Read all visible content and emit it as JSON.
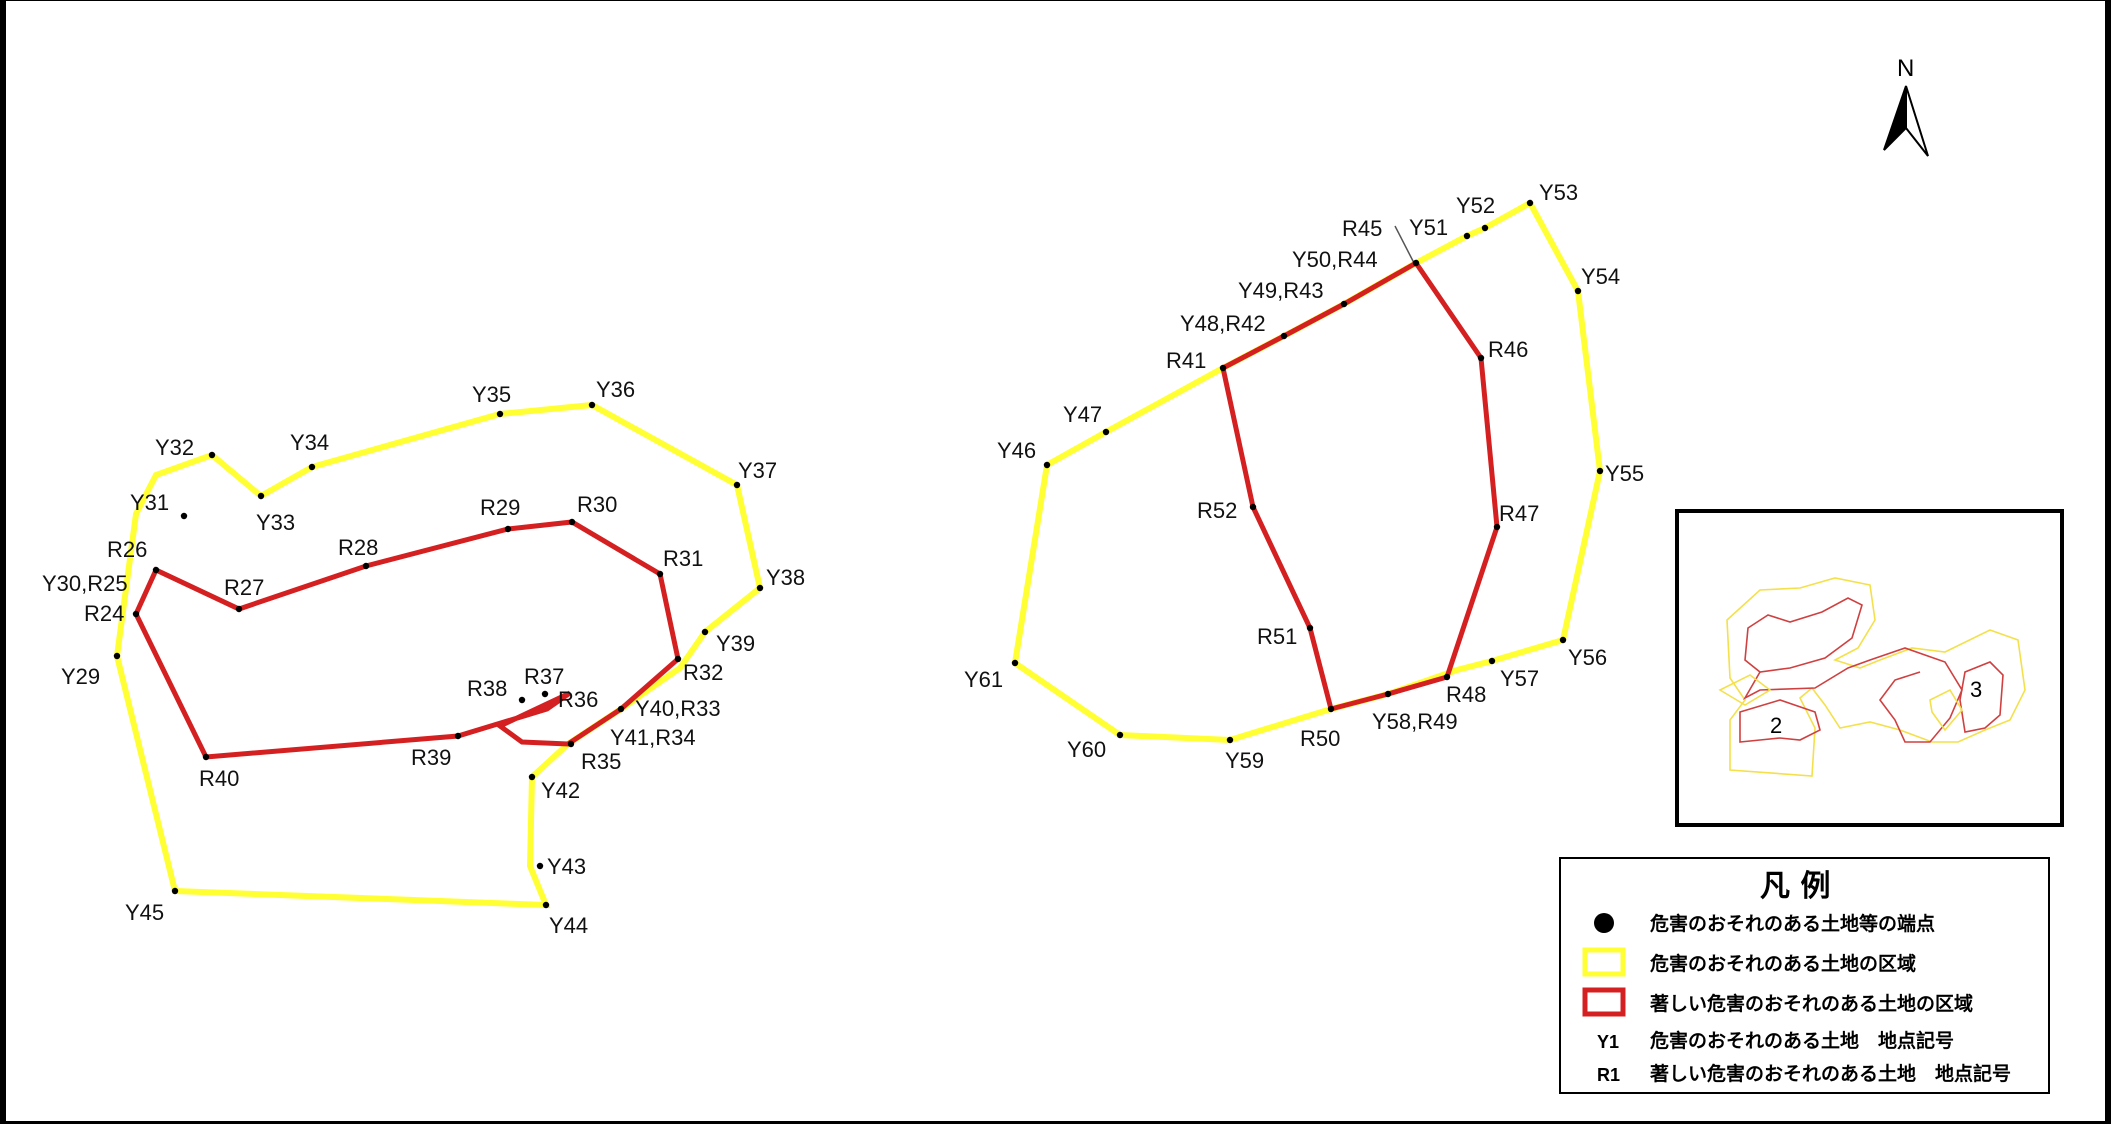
{
  "colors": {
    "yellow": "#ffff33",
    "red": "#d42020",
    "frame": "#000000",
    "inset_yellow": "#f4e04a",
    "inset_red": "#d04040"
  },
  "north": {
    "label": "N"
  },
  "zones": {
    "left": {
      "yellow_boundary": [
        "Y29",
        "Y31",
        "Y32",
        "Y33",
        "Y34",
        "Y35",
        "Y36",
        "Y37",
        "Y38",
        "Y39",
        "Y40,R33",
        "Y41,R34",
        "Y42",
        "Y43",
        "Y44",
        "Y45"
      ],
      "red_boundary": [
        "R24",
        "R26",
        "R27",
        "R28",
        "R29",
        "R30",
        "R31",
        "R32",
        "R33",
        "R34",
        "R35",
        "R36",
        "R37",
        "R38",
        "R39",
        "R40"
      ]
    },
    "right": {
      "yellow_boundary": [
        "Y46",
        "Y47",
        "Y48,R42",
        "Y49,R43",
        "Y50,R44",
        "Y51",
        "Y52",
        "Y53",
        "Y54",
        "Y55",
        "Y56",
        "Y57",
        "Y58,R49",
        "Y59",
        "Y60",
        "Y61"
      ],
      "red_boundary": [
        "R41",
        "R42",
        "R43",
        "R44",
        "R46",
        "R47",
        "R48",
        "R49",
        "R50",
        "R51",
        "R52"
      ]
    }
  },
  "point_labels": {
    "Y30R25": "Y30,R25",
    "R24": "R24",
    "R26": "R26",
    "Y29": "Y29",
    "Y31": "Y31",
    "Y32": "Y32",
    "Y33": "Y33",
    "Y34": "Y34",
    "Y35": "Y35",
    "Y36": "Y36",
    "Y37": "Y37",
    "Y38": "Y38",
    "Y39": "Y39",
    "R27": "R27",
    "R28": "R28",
    "R29": "R29",
    "R30": "R30",
    "R31": "R31",
    "R32": "R32",
    "Y40R33": "Y40,R33",
    "Y41R34": "Y41,R34",
    "R35": "R35",
    "R36": "R36",
    "R37": "R37",
    "R38": "R38",
    "R39": "R39",
    "R40": "R40",
    "Y42": "Y42",
    "Y43": "Y43",
    "Y44": "Y44",
    "Y45": "Y45",
    "Y46": "Y46",
    "Y47": "Y47",
    "R41": "R41",
    "Y48R42": "Y48,R42",
    "Y49R43": "Y49,R43",
    "Y50R44": "Y50,R44",
    "R45": "R45",
    "Y51": "Y51",
    "Y52": "Y52",
    "Y53": "Y53",
    "Y54": "Y54",
    "R46": "R46",
    "Y55": "Y55",
    "R47": "R47",
    "R52": "R52",
    "R51": "R51",
    "Y56": "Y56",
    "Y57": "Y57",
    "R48": "R48",
    "Y58R49": "Y58,R49",
    "R50": "R50",
    "Y59": "Y59",
    "Y60": "Y60",
    "Y61": "Y61"
  },
  "inset": {
    "label_2": "2",
    "label_3": "3"
  },
  "legend": {
    "title": "凡 例",
    "items": [
      {
        "symbol": "dot",
        "text": "危害のおそれのある土地等の端点"
      },
      {
        "symbol": "yellow-box",
        "text": "危害のおそれのある土地の区域"
      },
      {
        "symbol": "red-box",
        "text": "著しい危害のおそれのある土地の区域"
      },
      {
        "symbol": "code",
        "code": "Y1",
        "text": "危害のおそれのある土地　地点記号"
      },
      {
        "symbol": "code",
        "code": "R1",
        "text": "著しい危害のおそれのある土地　地点記号"
      }
    ]
  }
}
